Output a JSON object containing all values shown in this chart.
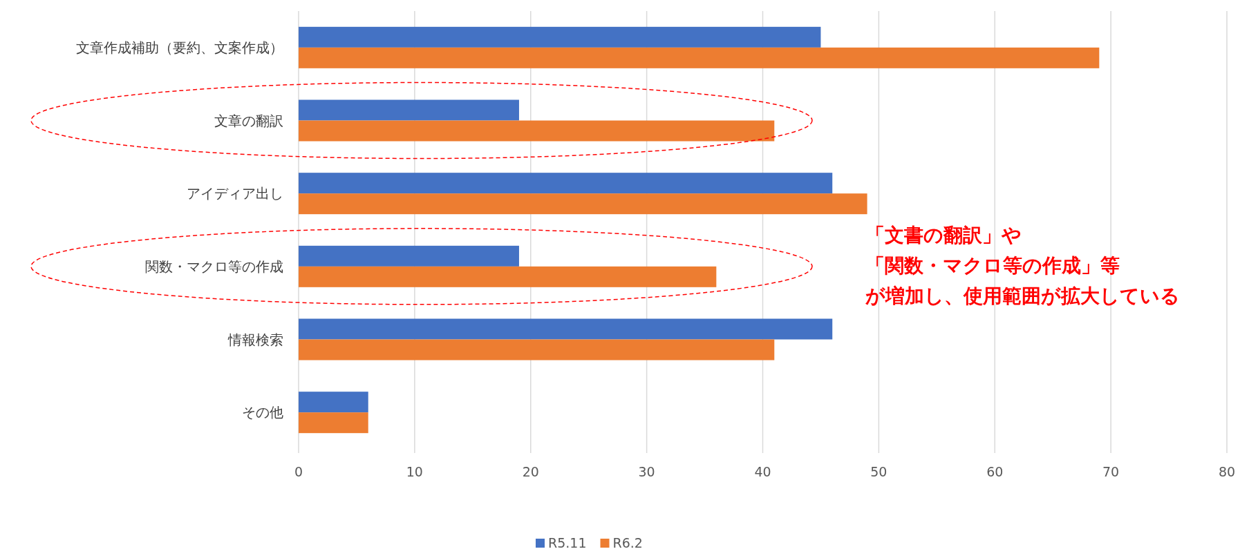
{
  "chart_data": {
    "type": "bar",
    "orientation": "horizontal",
    "categories": [
      "文章作成補助（要約、文案作成）",
      "文章の翻訳",
      "アイディア出し",
      "関数・マクロ等の作成",
      "情報検索",
      "その他"
    ],
    "series": [
      {
        "name": "R5.11",
        "color": "#4472c4",
        "values": [
          45,
          19,
          46,
          19,
          46,
          6
        ]
      },
      {
        "name": "R6.2",
        "color": "#ed7d31",
        "values": [
          69,
          41,
          49,
          36,
          41,
          6
        ]
      }
    ],
    "xlim": [
      0,
      80
    ],
    "xticks": [
      0,
      10,
      20,
      30,
      40,
      50,
      60,
      70,
      80
    ],
    "grid": "x",
    "legend": "bottom",
    "annotations": [
      "「文書の翻訳」や",
      "「関数・マクロ等の作成」等",
      "が増加し、使用範囲が拡大している"
    ]
  }
}
